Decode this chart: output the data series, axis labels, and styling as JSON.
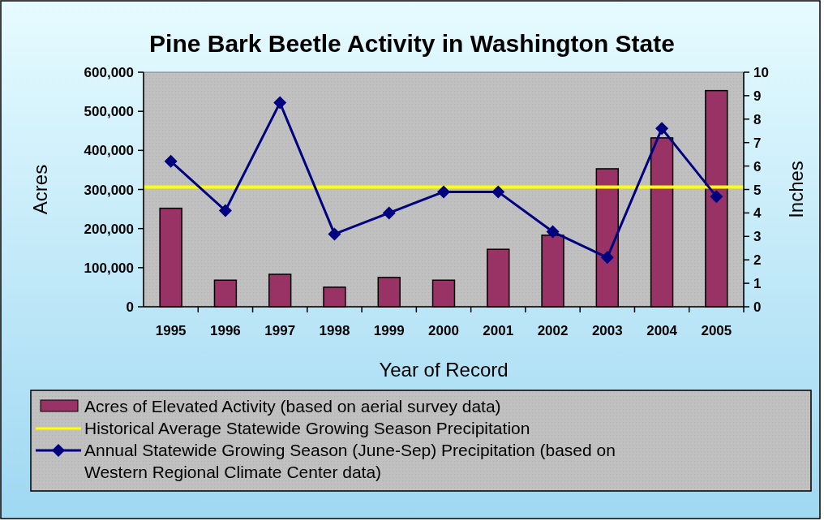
{
  "chart_data": {
    "type": "bar",
    "title": "Pine Bark Beetle Activity in Washington State",
    "xlabel": "Year of Record",
    "ylabel": "Acres",
    "y2label": "Inches",
    "categories": [
      "1995",
      "1996",
      "1997",
      "1998",
      "1999",
      "2000",
      "2001",
      "2002",
      "2003",
      "2004",
      "2005"
    ],
    "series": [
      {
        "name": "Acres of Elevated Activity (based on aerial survey data)",
        "color": "#993366",
        "values": [
          252000,
          68000,
          83000,
          50000,
          75000,
          68000,
          147000,
          183000,
          353000,
          432000,
          553000
        ]
      },
      {
        "name": "Annual Statewide Growing Season (June-Sep) Precipitation (based on Western Regional Climate Center data)",
        "type": "line",
        "axis": "y2",
        "color": "#000080",
        "marker": "diamond",
        "values": [
          6.2,
          4.1,
          8.7,
          3.1,
          4.0,
          4.9,
          4.9,
          3.2,
          2.1,
          7.6,
          4.7
        ]
      }
    ],
    "ref_lines": [
      {
        "axis": "y2",
        "value": 5.1,
        "label": "Historical Average Statewide Growing Season Precipitation",
        "color": "#ffff00"
      }
    ],
    "ylim": [
      0,
      600000
    ],
    "yticks": [
      {
        "value": 0,
        "label": "0"
      },
      {
        "value": 100000,
        "label": "100,000"
      },
      {
        "value": 200000,
        "label": "200,000"
      },
      {
        "value": 300000,
        "label": "300,000"
      },
      {
        "value": 400000,
        "label": "400,000"
      },
      {
        "value": 500000,
        "label": "500,000"
      },
      {
        "value": 600000,
        "label": "600,000"
      }
    ],
    "y2lim": [
      0,
      10
    ],
    "y2ticks": [
      0,
      1,
      2,
      3,
      4,
      5,
      6,
      7,
      8,
      9,
      10
    ],
    "legend": "bottom",
    "grid": false
  }
}
